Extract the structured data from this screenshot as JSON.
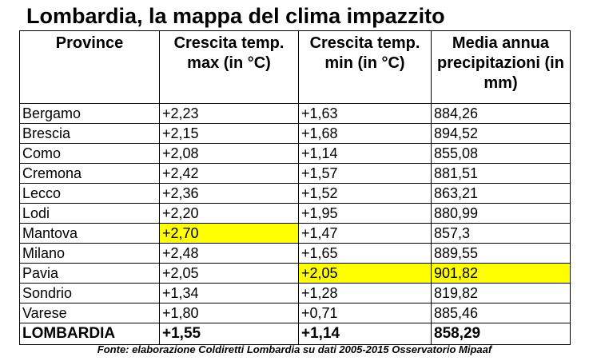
{
  "title": "Lombardia, la mappa del clima impazzito",
  "highlight_color": "#ffff00",
  "table": {
    "headers": [
      "Province",
      "Crescita temp. max (in °C)",
      "Crescita temp. min (in °C)",
      "Media annua precipitazioni (in mm)"
    ],
    "rows": [
      {
        "province": "Bergamo",
        "temp_max": "+2,23",
        "temp_min": "+1,63",
        "precip": "884,26"
      },
      {
        "province": "Brescia",
        "temp_max": "+2,15",
        "temp_min": "+1,68",
        "precip": "894,52"
      },
      {
        "province": "Como",
        "temp_max": "+2,08",
        "temp_min": "+1,14",
        "precip": "855,08"
      },
      {
        "province": "Cremona",
        "temp_max": "+2,42",
        "temp_min": "+1,57",
        "precip": "881,51"
      },
      {
        "province": "Lecco",
        "temp_max": "+2,36",
        "temp_min": "+1,52",
        "precip": "863,21"
      },
      {
        "province": "Lodi",
        "temp_max": "+2,20",
        "temp_min": "+1,95",
        "precip": "880,99"
      },
      {
        "province": "Mantova",
        "temp_max": "+2,70",
        "temp_min": "+1,47",
        "precip": "857,3"
      },
      {
        "province": "Milano",
        "temp_max": "+2,48",
        "temp_min": "+1,65",
        "precip": "889,55"
      },
      {
        "province": "Pavia",
        "temp_max": "+2,05",
        "temp_min": "+2,05",
        "precip": "901,82"
      },
      {
        "province": "Sondrio",
        "temp_max": "+1,34",
        "temp_min": "+1,28",
        "precip": "819,82"
      },
      {
        "province": "Varese",
        "temp_max": "+1,80",
        "temp_min": "+0,71",
        "precip": "885,46"
      }
    ],
    "total": {
      "province": "LOMBARDIA",
      "temp_max": "+1,55",
      "temp_min": "+1,14",
      "precip": "858,29"
    }
  },
  "source": "Fonte: elaborazione Coldiretti Lombardia su dati 2005-2015 Osservatorio Mipaaf"
}
